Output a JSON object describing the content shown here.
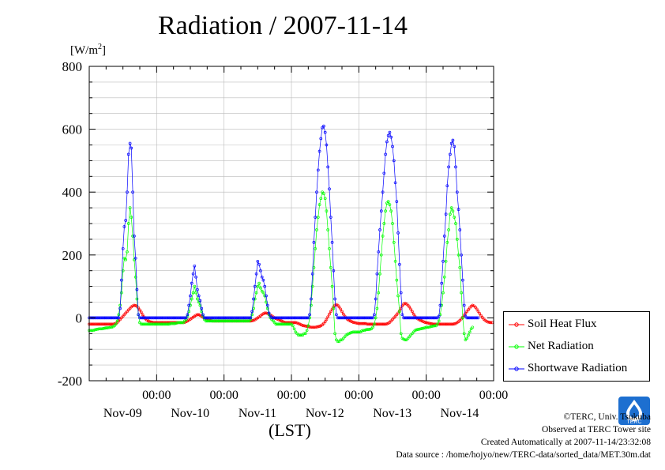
{
  "title": "Radiation / 2007-11-14",
  "unit": {
    "prefix": "[W/m",
    "exp": "2",
    "suffix": "]"
  },
  "x_unit_label": "(LST)",
  "credits": {
    "copyright": "©TERC, Univ. Tsukuba",
    "observed": "Observed at TERC Tower site",
    "created": "Created Automatically at 2007-11-14/23:32:08",
    "source": "Data source : /home/hojyo/new/TERC-data/sorted_data/MET.30m.dat"
  },
  "logo_text": "TERC",
  "chart_data": {
    "type": "line",
    "title": "Radiation / 2007-11-14",
    "ylabel": "[W/m2]",
    "xlabel": "(LST)",
    "ylim": [
      -200,
      800
    ],
    "yticks": [
      -200,
      0,
      200,
      400,
      600,
      800
    ],
    "x_start": "Nov-09 00:00",
    "x_end": "Nov-15 00:00",
    "x_tick_labels": [
      {
        "time": "00:00",
        "date": "Nov-09"
      },
      {
        "time": "00:00",
        "date": "Nov-10"
      },
      {
        "time": "00:00",
        "date": "Nov-11"
      },
      {
        "time": "00:00",
        "date": "Nov-12"
      },
      {
        "time": "00:00",
        "date": "Nov-13"
      },
      {
        "time": "00:00",
        "date": "Nov-14"
      }
    ],
    "grid": true,
    "legend_position": "right",
    "series": [
      {
        "name": "Soil Heat Flux",
        "color": "#ff0000",
        "unit_step": "30min",
        "values": [
          -20,
          -20,
          -20,
          -20,
          -20,
          -20,
          -20,
          -20,
          -20,
          -20,
          -20,
          -20,
          -20,
          -20,
          -20,
          -20,
          -20,
          -20,
          -19,
          -17,
          -14,
          -10,
          -5,
          0,
          5,
          10,
          15,
          20,
          25,
          30,
          35,
          38,
          40,
          39,
          37,
          32,
          25,
          18,
          10,
          3,
          -3,
          -7,
          -10,
          -12,
          -13,
          -14,
          -15,
          -15,
          -15,
          -15,
          -15,
          -15,
          -15,
          -15,
          -15,
          -15,
          -15,
          -15,
          -15,
          -15,
          -15,
          -15,
          -15,
          -15,
          -15,
          -15,
          -15,
          -15,
          -14,
          -12,
          -10,
          -7,
          -4,
          -1,
          2,
          5,
          8,
          10,
          10,
          8,
          5,
          2,
          0,
          -2,
          -4,
          -6,
          -8,
          -9,
          -10,
          -10,
          -10,
          -10,
          -10,
          -10,
          -10,
          -10,
          -10,
          -10,
          -10,
          -10,
          -10,
          -10,
          -10,
          -10,
          -10,
          -10,
          -10,
          -10,
          -10,
          -10,
          -10,
          -10,
          -10,
          -10,
          -10,
          -10,
          -9,
          -8,
          -6,
          -3,
          0,
          3,
          6,
          10,
          13,
          15,
          15,
          14,
          12,
          9,
          6,
          3,
          0,
          -2,
          -4,
          -6,
          -8,
          -10,
          -12,
          -14,
          -15,
          -15,
          -15,
          -15,
          -15,
          -15,
          -15,
          -15,
          -16,
          -18,
          -20,
          -22,
          -24,
          -25,
          -26,
          -27,
          -28,
          -29,
          -30,
          -30,
          -30,
          -30,
          -29,
          -28,
          -27,
          -25,
          -22,
          -18,
          -12,
          -5,
          3,
          12,
          20,
          28,
          35,
          40,
          42,
          40,
          35,
          28,
          20,
          12,
          5,
          0,
          -5,
          -8,
          -10,
          -12,
          -14,
          -15,
          -16,
          -17,
          -18,
          -18,
          -18,
          -18,
          -18,
          -18,
          -20,
          -20,
          -20,
          -20,
          -20,
          -20,
          -20,
          -20,
          -20,
          -20,
          -20,
          -20,
          -20,
          -20,
          -19,
          -17,
          -14,
          -10,
          -5,
          0,
          5,
          10,
          15,
          22,
          30,
          38,
          44,
          46,
          44,
          40,
          35,
          28,
          20,
          12,
          5,
          0,
          -3,
          -6,
          -8,
          -10,
          -12,
          -14,
          -15,
          -16,
          -17,
          -18,
          -19,
          -20,
          -20,
          -20,
          -20,
          -20,
          -20,
          -20,
          -20,
          -20,
          -20,
          -20,
          -20,
          -20,
          -20,
          -20,
          -19,
          -18,
          -15,
          -12,
          -8,
          -3,
          2,
          8,
          14,
          20,
          26,
          32,
          37,
          40,
          38,
          34,
          28,
          21,
          14,
          7,
          1,
          -4,
          -8,
          -11,
          -13,
          -14,
          -15,
          -15
        ]
      },
      {
        "name": "Net Radiation",
        "color": "#00ff00",
        "unit_step": "30min",
        "values": [
          -40,
          -40,
          -40,
          -40,
          -38,
          -37,
          -36,
          -35,
          -35,
          -35,
          -34,
          -33,
          -32,
          -32,
          -31,
          -30,
          -30,
          -28,
          -25,
          -20,
          -10,
          10,
          40,
          80,
          150,
          190,
          185,
          210,
          300,
          350,
          320,
          260,
          185,
          130,
          60,
          10,
          -15,
          -20,
          -20,
          -20,
          -20,
          -20,
          -20,
          -20,
          -20,
          -20,
          -20,
          -20,
          -20,
          -20,
          -20,
          -20,
          -20,
          -20,
          -20,
          -20,
          -20,
          -20,
          -18,
          -18,
          -18,
          -18,
          -17,
          -15,
          -15,
          -15,
          -15,
          -15,
          -10,
          -5,
          5,
          20,
          40,
          60,
          80,
          100,
          80,
          60,
          50,
          40,
          20,
          5,
          -5,
          -10,
          -10,
          -10,
          -10,
          -10,
          -10,
          -10,
          -10,
          -10,
          -10,
          -10,
          -10,
          -10,
          -10,
          -10,
          -10,
          -10,
          -10,
          -10,
          -10,
          -10,
          -10,
          -10,
          -10,
          -10,
          -10,
          -10,
          -10,
          -10,
          -10,
          -10,
          -10,
          -5,
          10,
          30,
          60,
          80,
          100,
          110,
          95,
          85,
          80,
          70,
          50,
          30,
          10,
          0,
          -5,
          -10,
          -15,
          -20,
          -20,
          -20,
          -20,
          -20,
          -20,
          -20,
          -20,
          -20,
          -20,
          -20,
          -20,
          -25,
          -35,
          -45,
          -50,
          -55,
          -55,
          -55,
          -55,
          -50,
          -50,
          -40,
          -25,
          0,
          40,
          100,
          160,
          220,
          280,
          320,
          360,
          380,
          400,
          395,
          380,
          340,
          280,
          220,
          160,
          100,
          30,
          -50,
          -70,
          -75,
          -75,
          -70,
          -70,
          -65,
          -60,
          -55,
          -52,
          -50,
          -48,
          -46,
          -45,
          -45,
          -45,
          -45,
          -45,
          -45,
          -42,
          -40,
          -40,
          -38,
          -37,
          -37,
          -36,
          -35,
          -30,
          -20,
          0,
          30,
          80,
          140,
          200,
          260,
          300,
          340,
          365,
          370,
          360,
          340,
          300,
          240,
          180,
          120,
          70,
          20,
          -50,
          -65,
          -68,
          -70,
          -70,
          -65,
          -60,
          -55,
          -50,
          -45,
          -40,
          -38,
          -37,
          -36,
          -35,
          -34,
          -33,
          -32,
          -30,
          -30,
          -30,
          -28,
          -27,
          -26,
          -25,
          -25,
          -20,
          -10,
          10,
          40,
          80,
          130,
          180,
          240,
          280,
          330,
          350,
          340,
          320,
          300,
          250,
          200,
          160,
          80,
          0,
          -50,
          -70,
          -65,
          -55,
          -45,
          -35,
          -30
        ]
      },
      {
        "name": "Shortwave Radiation",
        "color": "#0000ff",
        "unit_step": "30min",
        "values": [
          0,
          0,
          0,
          0,
          0,
          0,
          0,
          0,
          0,
          0,
          0,
          0,
          0,
          0,
          0,
          0,
          0,
          0,
          0,
          0,
          0,
          0,
          30,
          120,
          220,
          290,
          310,
          400,
          520,
          555,
          540,
          400,
          260,
          190,
          90,
          10,
          0,
          0,
          0,
          0,
          0,
          0,
          0,
          0,
          0,
          0,
          0,
          0,
          0,
          0,
          0,
          0,
          0,
          0,
          0,
          0,
          0,
          0,
          0,
          0,
          0,
          0,
          0,
          0,
          0,
          0,
          0,
          0,
          0,
          0,
          10,
          40,
          70,
          110,
          140,
          165,
          130,
          90,
          70,
          55,
          30,
          10,
          0,
          0,
          0,
          0,
          0,
          0,
          0,
          0,
          0,
          0,
          0,
          0,
          0,
          0,
          0,
          0,
          0,
          0,
          0,
          0,
          0,
          0,
          0,
          0,
          0,
          0,
          0,
          0,
          0,
          0,
          0,
          0,
          0,
          0,
          20,
          60,
          100,
          140,
          180,
          170,
          150,
          130,
          120,
          100,
          70,
          40,
          15,
          5,
          0,
          0,
          0,
          0,
          0,
          0,
          0,
          0,
          0,
          0,
          0,
          0,
          0,
          0,
          0,
          0,
          0,
          0,
          0,
          0,
          0,
          0,
          0,
          0,
          0,
          0,
          0,
          10,
          60,
          140,
          240,
          320,
          400,
          470,
          530,
          570,
          605,
          610,
          590,
          550,
          480,
          410,
          320,
          240,
          150,
          60,
          10,
          0,
          0,
          0,
          0,
          0,
          0,
          0,
          0,
          0,
          0,
          0,
          0,
          0,
          0,
          0,
          0,
          0,
          0,
          0,
          0,
          0,
          0,
          0,
          0,
          0,
          0,
          10,
          60,
          140,
          210,
          280,
          340,
          400,
          460,
          520,
          560,
          580,
          590,
          575,
          545,
          500,
          430,
          370,
          270,
          170,
          80,
          10,
          0,
          0,
          0,
          0,
          0,
          0,
          0,
          0,
          0,
          0,
          0,
          0,
          0,
          0,
          0,
          0,
          0,
          0,
          0,
          0,
          0,
          0,
          0,
          0,
          0,
          5,
          40,
          110,
          180,
          260,
          330,
          420,
          480,
          520,
          555,
          565,
          545,
          480,
          400,
          345,
          280,
          200,
          120,
          40,
          5,
          0,
          0,
          0,
          0,
          0,
          0,
          0,
          0,
          0
        ]
      }
    ]
  }
}
